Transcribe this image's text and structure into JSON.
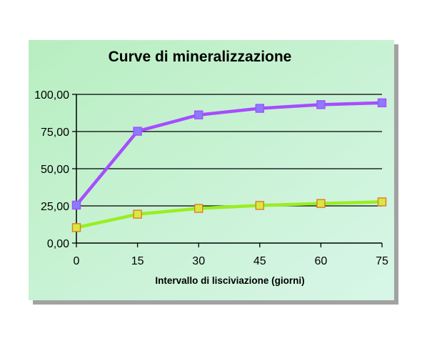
{
  "chart_data": {
    "type": "line",
    "title": "Curve di mineralizzazione",
    "xlabel": "Intervallo di lisciviazione (giorni)",
    "ylabel": "",
    "x": [
      0,
      15,
      30,
      45,
      60,
      75
    ],
    "x_tick_labels": [
      "0",
      "15",
      "30",
      "45",
      "60",
      "75"
    ],
    "ylim": [
      0,
      100
    ],
    "y_tick_values": [
      0,
      25,
      50,
      75,
      100
    ],
    "y_tick_labels": [
      "0,00",
      "25,00",
      "50,00",
      "75,00",
      "100,00"
    ],
    "grid": "horizontal major lines",
    "legend": "none",
    "series": [
      {
        "values": [
          25.5,
          75.2,
          86.2,
          90.6,
          93.1,
          94.3
        ],
        "color": "#a64dff",
        "marker_color": "#8a7bff",
        "marker": "square"
      },
      {
        "values": [
          10.4,
          19.4,
          23.3,
          25.3,
          26.6,
          27.7
        ],
        "color": "#99ee22",
        "marker_color": "#d8e840",
        "marker_edge": "#e07a2a",
        "marker": "square"
      }
    ]
  },
  "colors": {
    "background_top": "#b8eec0",
    "background_bottom": "#d8f6e8",
    "gridline": "#000000",
    "axis": "#000000",
    "text": "#000000"
  }
}
